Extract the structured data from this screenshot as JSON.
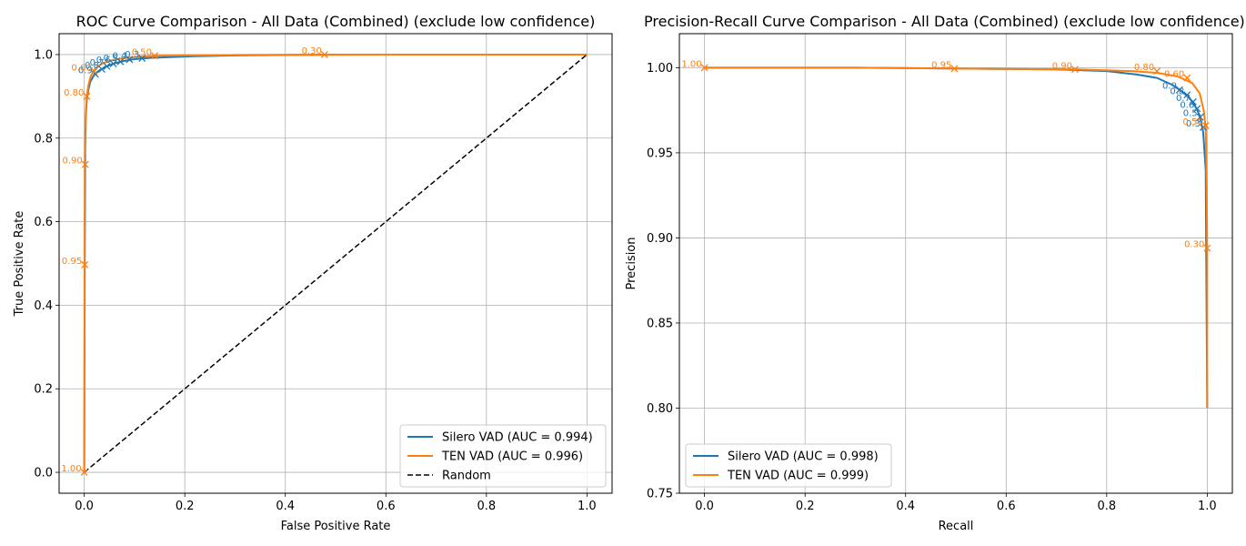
{
  "chart_data": [
    {
      "type": "line",
      "title": "ROC Curve Comparison - All Data (Combined) (exclude low confidence)",
      "xlabel": "False Positive Rate",
      "ylabel": "True Positive Rate",
      "xlim": [
        -0.05,
        1.05
      ],
      "ylim": [
        -0.05,
        1.05
      ],
      "xticks": [
        0.0,
        0.2,
        0.4,
        0.6,
        0.8,
        1.0
      ],
      "xtick_labels": [
        "0.0",
        "0.2",
        "0.4",
        "0.6",
        "0.8",
        "1.0"
      ],
      "yticks": [
        0.0,
        0.2,
        0.4,
        0.6,
        0.8,
        1.0
      ],
      "ytick_labels": [
        "0.0",
        "0.2",
        "0.4",
        "0.6",
        "0.8",
        "1.0"
      ],
      "grid": true,
      "legend_position": "lower-right",
      "series": [
        {
          "name": "Silero VAD (AUC = 0.994)",
          "color": "#1f77b4",
          "style": "solid",
          "x": [
            0,
            0.001,
            0.002,
            0.003,
            0.005,
            0.008,
            0.012,
            0.02,
            0.03,
            0.045,
            0.06,
            0.08,
            0.1,
            0.13,
            0.17,
            0.22,
            0.3,
            0.4,
            0.6,
            0.8,
            1.0
          ],
          "y": [
            0,
            0.5,
            0.78,
            0.85,
            0.89,
            0.915,
            0.935,
            0.952,
            0.962,
            0.972,
            0.979,
            0.985,
            0.989,
            0.992,
            0.994,
            0.996,
            0.998,
            0.999,
            1.0,
            1.0,
            1.0
          ]
        },
        {
          "name": "TEN VAD (AUC = 0.996)",
          "color": "#ff7f0e",
          "style": "solid",
          "x": [
            0,
            0.0005,
            0.001,
            0.002,
            0.003,
            0.005,
            0.008,
            0.012,
            0.018,
            0.025,
            0.035,
            0.05,
            0.07,
            0.1,
            0.14,
            0.2,
            0.3,
            0.48,
            0.7,
            1.0
          ],
          "y": [
            0,
            0.5,
            0.74,
            0.82,
            0.86,
            0.9,
            0.925,
            0.945,
            0.96,
            0.97,
            0.978,
            0.985,
            0.99,
            0.994,
            0.997,
            0.998,
            0.999,
            1.0,
            1.0,
            1.0
          ]
        },
        {
          "name": "Random",
          "color": "#000000",
          "style": "dashed",
          "x": [
            0,
            1
          ],
          "y": [
            0,
            1
          ]
        }
      ],
      "markers": [
        {
          "series": 0,
          "x": 0.022,
          "y": 0.953,
          "label": "0.9"
        },
        {
          "series": 0,
          "x": 0.035,
          "y": 0.965,
          "label": "0.8"
        },
        {
          "series": 0,
          "x": 0.045,
          "y": 0.972,
          "label": "0.7"
        },
        {
          "series": 0,
          "x": 0.058,
          "y": 0.978,
          "label": "0.6"
        },
        {
          "series": 0,
          "x": 0.072,
          "y": 0.983,
          "label": "0.5"
        },
        {
          "series": 0,
          "x": 0.09,
          "y": 0.988,
          "label": "0.4"
        },
        {
          "series": 0,
          "x": 0.115,
          "y": 0.991,
          "label": "0.3"
        },
        {
          "series": 1,
          "x": 0.0,
          "y": 0.0,
          "label": "1.00"
        },
        {
          "series": 1,
          "x": 0.001,
          "y": 0.497,
          "label": "0.95"
        },
        {
          "series": 1,
          "x": 0.002,
          "y": 0.737,
          "label": "0.90"
        },
        {
          "series": 1,
          "x": 0.005,
          "y": 0.9,
          "label": "0.80"
        },
        {
          "series": 1,
          "x": 0.02,
          "y": 0.96,
          "label": "0.60"
        },
        {
          "series": 1,
          "x": 0.14,
          "y": 0.997,
          "label": "0.50"
        },
        {
          "series": 1,
          "x": 0.478,
          "y": 1.0,
          "label": "0.30"
        }
      ]
    },
    {
      "type": "line",
      "title": "Precision-Recall Curve Comparison - All Data (Combined) (exclude low confidence)",
      "xlabel": "Recall",
      "ylabel": "Precision",
      "xlim": [
        -0.05,
        1.05
      ],
      "ylim": [
        0.75,
        1.02
      ],
      "xticks": [
        0.0,
        0.2,
        0.4,
        0.6,
        0.8,
        1.0
      ],
      "xtick_labels": [
        "0.0",
        "0.2",
        "0.4",
        "0.6",
        "0.8",
        "1.0"
      ],
      "yticks": [
        0.75,
        0.8,
        0.85,
        0.9,
        0.95,
        1.0
      ],
      "ytick_labels": [
        "0.75",
        "0.80",
        "0.85",
        "0.90",
        "0.95",
        "1.00"
      ],
      "grid": true,
      "legend_position": "lower-left",
      "series": [
        {
          "name": "Silero VAD (AUC = 0.998)",
          "color": "#1f77b4",
          "style": "solid",
          "x": [
            0,
            0.3,
            0.5,
            0.7,
            0.8,
            0.86,
            0.9,
            0.93,
            0.95,
            0.965,
            0.975,
            0.985,
            0.992,
            0.997,
            1.0
          ],
          "y": [
            1.0,
            1.0,
            0.9995,
            0.999,
            0.998,
            0.996,
            0.994,
            0.99,
            0.986,
            0.982,
            0.978,
            0.972,
            0.962,
            0.94,
            0.8
          ]
        },
        {
          "name": "TEN VAD (AUC = 0.999)",
          "color": "#ff7f0e",
          "style": "solid",
          "x": [
            0,
            0.3,
            0.5,
            0.74,
            0.85,
            0.9,
            0.94,
            0.97,
            0.985,
            0.993,
            0.997,
            0.999,
            1.0,
            1.0
          ],
          "y": [
            1.0,
            1.0,
            0.9995,
            0.999,
            0.998,
            0.997,
            0.995,
            0.991,
            0.985,
            0.975,
            0.965,
            0.93,
            0.89,
            0.8
          ]
        }
      ],
      "markers": [
        {
          "series": 0,
          "x": 0.945,
          "y": 0.987,
          "label": "0.9"
        },
        {
          "series": 0,
          "x": 0.96,
          "y": 0.984,
          "label": "0.8"
        },
        {
          "series": 0,
          "x": 0.972,
          "y": 0.98,
          "label": "0.7"
        },
        {
          "series": 0,
          "x": 0.98,
          "y": 0.976,
          "label": "0.6"
        },
        {
          "series": 0,
          "x": 0.986,
          "y": 0.971,
          "label": "0.5"
        },
        {
          "series": 0,
          "x": 0.992,
          "y": 0.965,
          "label": "0.3"
        },
        {
          "series": 1,
          "x": 0.0,
          "y": 1.0,
          "label": "1.00"
        },
        {
          "series": 1,
          "x": 0.497,
          "y": 0.9995,
          "label": "0.95"
        },
        {
          "series": 1,
          "x": 0.737,
          "y": 0.999,
          "label": "0.90"
        },
        {
          "series": 1,
          "x": 0.9,
          "y": 0.998,
          "label": "0.80"
        },
        {
          "series": 1,
          "x": 0.96,
          "y": 0.994,
          "label": "0.60"
        },
        {
          "series": 1,
          "x": 0.997,
          "y": 0.966,
          "label": "0.50"
        },
        {
          "series": 1,
          "x": 1.0,
          "y": 0.894,
          "label": "0.30"
        }
      ]
    }
  ]
}
